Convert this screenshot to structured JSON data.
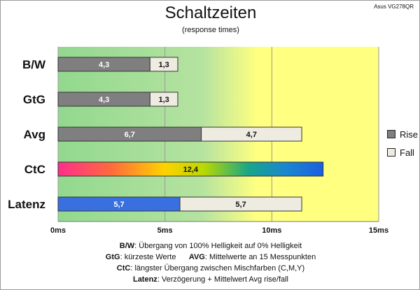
{
  "title": "Schaltzeiten",
  "subtitle": "(response times)",
  "model": "Asus VG278QR",
  "colors": {
    "rise": "#7f7f7f",
    "fall": "#eeece1",
    "latenz_rise": "#3a6fe0",
    "bg_green": "#92d88e",
    "bg_yellow": "#ffff80"
  },
  "legend": [
    {
      "label": "Rise",
      "color": "#7f7f7f"
    },
    {
      "label": "Fall",
      "color": "#eeece1"
    }
  ],
  "chart_data": {
    "type": "bar",
    "orientation": "horizontal",
    "stacked": true,
    "title": "Schaltzeiten",
    "subtitle": "(response times)",
    "unit": "ms",
    "categories": [
      "B/W",
      "GtG",
      "Avg",
      "CtC",
      "Latenz"
    ],
    "series": [
      {
        "name": "Rise",
        "values": [
          4.3,
          4.3,
          6.7,
          12.4,
          5.7
        ],
        "labels": [
          "4,3",
          "4,3",
          "6,7",
          "12,4",
          "5,7"
        ]
      },
      {
        "name": "Fall",
        "values": [
          1.3,
          1.3,
          4.7,
          null,
          5.7
        ],
        "labels": [
          "1,3",
          "1,3",
          "4,7",
          "",
          "5,7"
        ]
      }
    ],
    "xlim": [
      0,
      15
    ],
    "xticks": [
      0,
      5,
      10,
      15
    ],
    "xtick_labels": [
      "0ms",
      "5ms",
      "10ms",
      "15ms"
    ],
    "grid": true,
    "legend_position": "right"
  },
  "footer": [
    {
      "term": "B/W",
      "text": ":  Übergang von 100% Helligkeit auf 0% Helligkeit"
    },
    {
      "term": "GtG",
      "text": ": kürzeste  Werte",
      "term2": "AVG",
      "text2": ": Mittelwerte  an 15 Messpunkten"
    },
    {
      "term": "CtC",
      "text": ": längster Übergang  zwischen Mischfarben (C,M,Y)"
    },
    {
      "term": "Latenz",
      "text": ": Verzögerung  + Mittelwert  Avg rise/fall"
    }
  ]
}
